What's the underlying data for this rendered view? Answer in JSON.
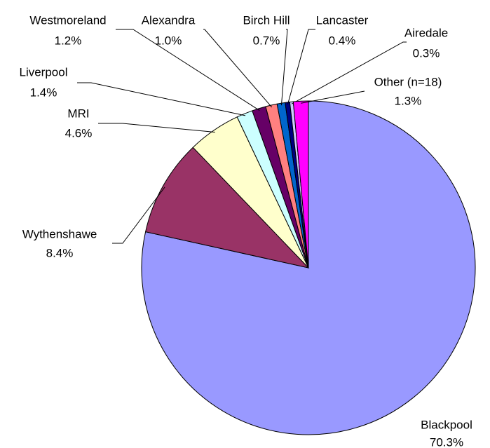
{
  "chart_data": {
    "type": "pie",
    "categories": [
      "Blackpool",
      "Wythenshawe",
      "MRI",
      "Liverpool",
      "Westmoreland",
      "Alexandra",
      "Birch Hill",
      "Lancaster",
      "Airedale",
      "Other (n=18)"
    ],
    "values": [
      70.3,
      8.4,
      4.6,
      1.4,
      1.2,
      1.0,
      0.7,
      0.4,
      0.3,
      1.3
    ],
    "value_labels": [
      "70.3%",
      "8.4%",
      "4.6%",
      "1.4%",
      "1.2%",
      "1.0%",
      "0.7%",
      "0.4%",
      "0.3%",
      "1.3%"
    ],
    "colors": [
      "#9999ff",
      "#993366",
      "#ffffcc",
      "#ccffff",
      "#660066",
      "#ff8080",
      "#0066cc",
      "#000080",
      "#ccccff",
      "#ff00ff"
    ]
  }
}
